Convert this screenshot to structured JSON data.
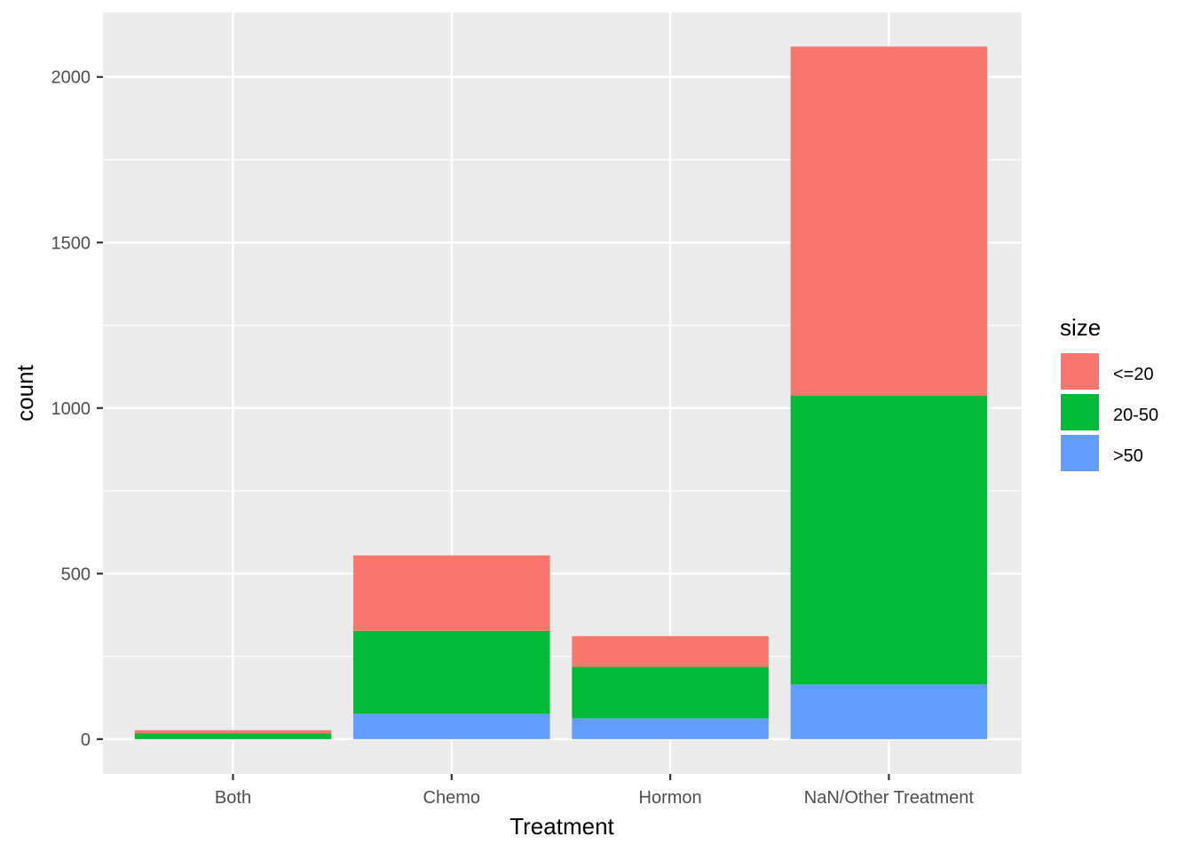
{
  "chart_data": {
    "type": "bar",
    "stacked": true,
    "categories": [
      "Both",
      "Chemo",
      "Hormon",
      "NaN/Other Treatment"
    ],
    "series": [
      {
        "name": "<=20",
        "values": [
          10,
          228,
          93,
          1054
        ],
        "color": "#F8766D"
      },
      {
        "name": "20-50",
        "values": [
          17,
          250,
          155,
          873
        ],
        "color": "#00BA38"
      },
      {
        "name": ">50",
        "values": [
          0,
          77,
          63,
          165
        ],
        "color": "#619CFF"
      }
    ],
    "xlabel": "Treatment",
    "ylabel": "count",
    "ylim": [
      -105,
      2195
    ],
    "yticks": [
      0,
      500,
      1000,
      1500,
      2000
    ],
    "grid": true,
    "legend": {
      "title": "size",
      "position": "right"
    },
    "panel_background": "#EBEBEB"
  }
}
